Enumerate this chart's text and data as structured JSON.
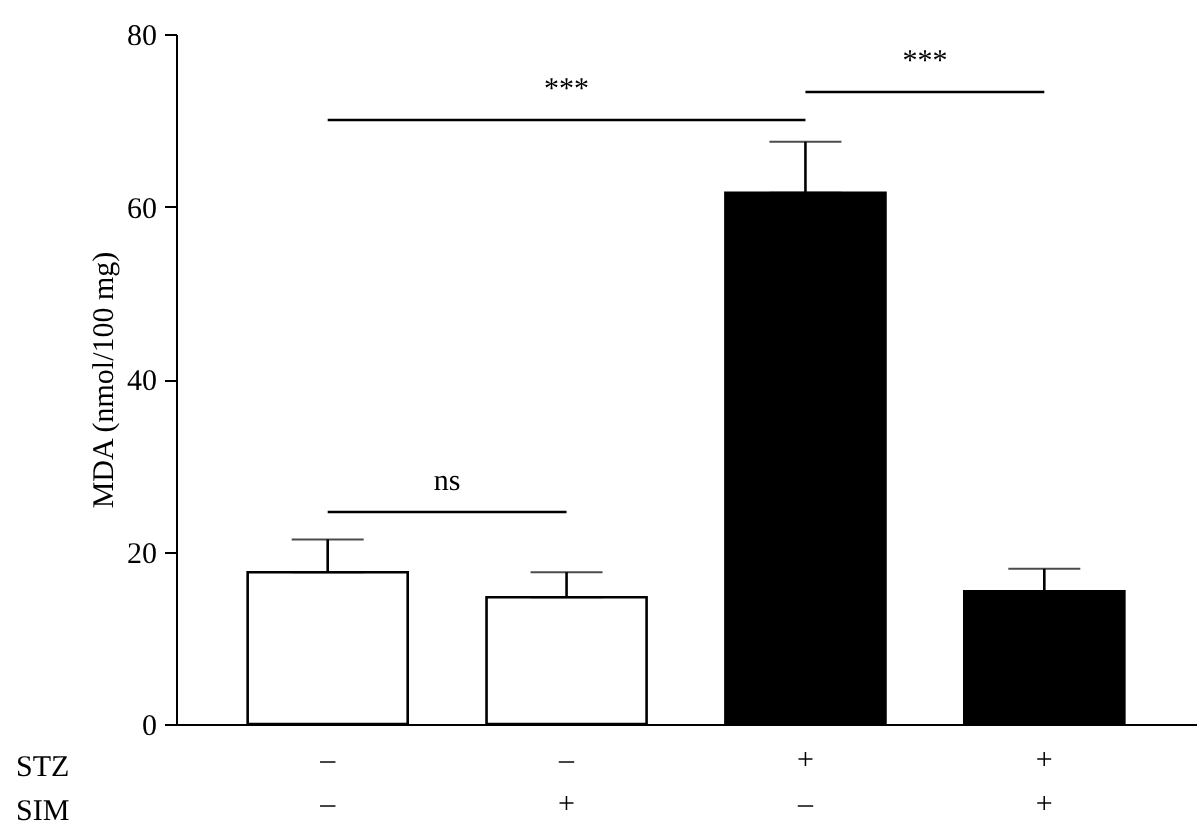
{
  "chart_data": {
    "type": "bar",
    "ylabel": "MDA (nmol/100 mg)",
    "categories": [
      "–\n–",
      "–\n+",
      "+\n–",
      "+\n+"
    ],
    "values": [
      17.6,
      14.7,
      61.6,
      15.4
    ],
    "colors": [
      "#ffffff",
      "#ffffff",
      "#000000",
      "#000000"
    ],
    "errors": [
      [
        17.6,
        21.4
      ],
      [
        14.7,
        17.6
      ],
      [
        61.6,
        67.5
      ],
      [
        15.4,
        18.0
      ]
    ],
    "ylim": [
      0,
      80
    ],
    "yticks": [
      0,
      20,
      40,
      60,
      80
    ],
    "grid": false,
    "annotations": [
      "ns",
      "***",
      "***",
      "STZ",
      "SIM"
    ]
  }
}
